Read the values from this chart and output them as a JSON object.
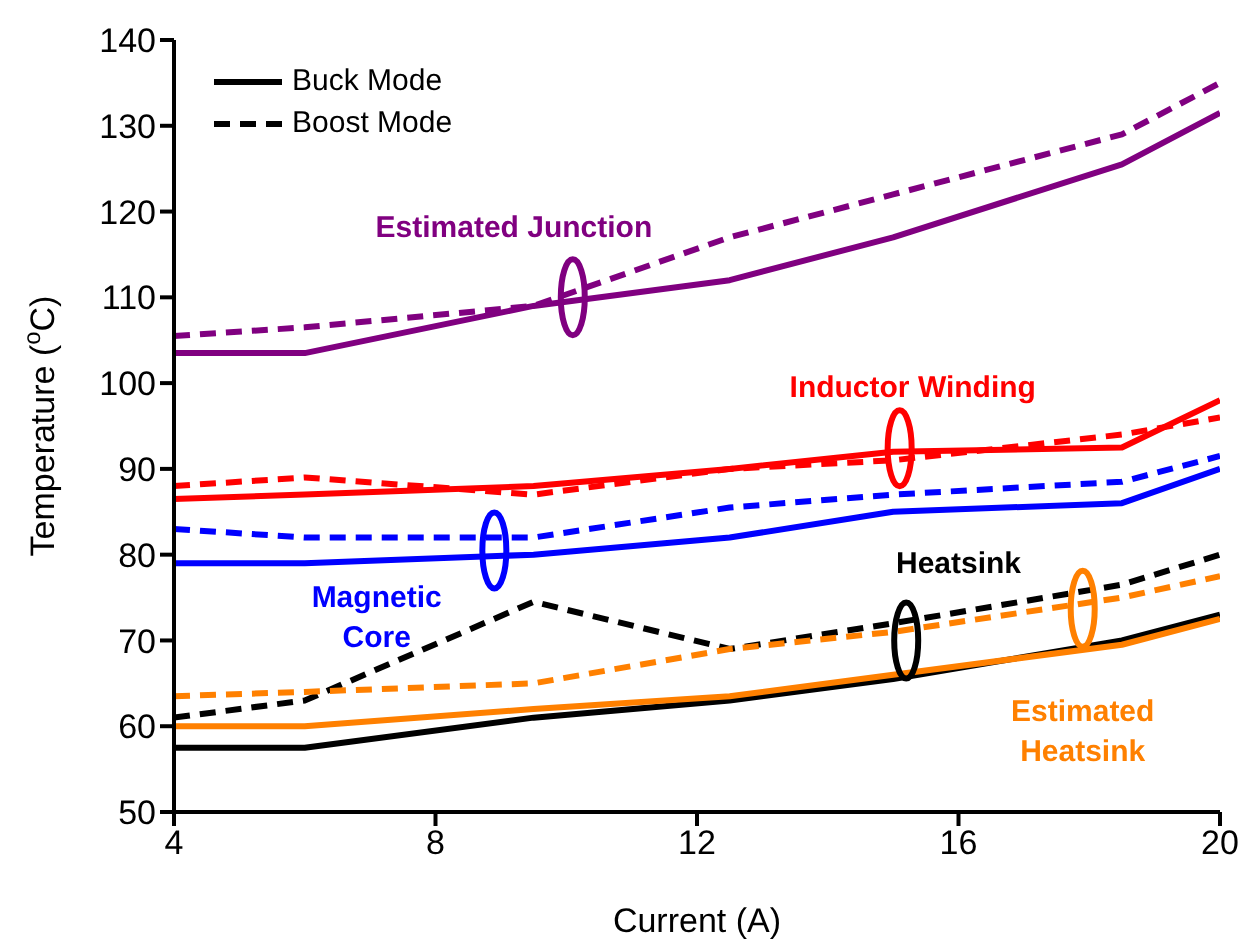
{
  "chart_data": {
    "type": "line",
    "xlabel": "Current (A)",
    "ylabel": "Temperature ($^{o}$C)",
    "x": [
      4,
      6,
      9.5,
      12.5,
      15,
      18.5,
      20
    ],
    "series": [
      {
        "color": "#800080",
        "line_style": "solid",
        "values": [
          103.5,
          103.5,
          109,
          112,
          117,
          125.5,
          131.5
        ]
      },
      {
        "color": "#800080",
        "line_style": "dashed",
        "values": [
          105.5,
          106.5,
          109,
          117,
          122,
          129,
          135
        ]
      },
      {
        "color": "#ff0000",
        "line_style": "solid",
        "values": [
          86.5,
          87,
          88,
          90,
          92,
          92.5,
          98
        ]
      },
      {
        "color": "#ff0000",
        "line_style": "dashed",
        "values": [
          88,
          89,
          87,
          90,
          91,
          94,
          96
        ]
      },
      {
        "color": "#0000ff",
        "line_style": "solid",
        "values": [
          79,
          79,
          80,
          82,
          85,
          86,
          90
        ]
      },
      {
        "color": "#0000ff",
        "line_style": "dashed",
        "values": [
          83,
          82,
          82,
          85.5,
          87,
          88.5,
          91.5
        ]
      },
      {
        "name": "Buck Mode",
        "color": "#000000",
        "line_style": "solid",
        "values": [
          57.5,
          57.5,
          61,
          63,
          65.5,
          70,
          73
        ]
      },
      {
        "name": "Boost Mode",
        "color": "#000000",
        "line_style": "dashed",
        "values": [
          61,
          63,
          74.5,
          69,
          72,
          76.5,
          80
        ]
      },
      {
        "color": "#ff8000",
        "line_style": "solid",
        "values": [
          60,
          60,
          62,
          63.5,
          66,
          69.5,
          72.5
        ]
      },
      {
        "color": "#ff8000",
        "line_style": "dashed",
        "values": [
          63.5,
          64,
          65,
          69,
          71,
          75,
          77.5
        ]
      }
    ],
    "annotations": [
      "Estimated Junction",
      "Inductor Winding",
      "Magnetic\nCore",
      "Heatsink",
      "Estimated\nHeatsink"
    ],
    "xlim": [
      4,
      20
    ],
    "xticks": [
      4,
      8,
      12,
      16,
      20
    ],
    "ylim": [
      50,
      140
    ],
    "yticks": [
      50,
      60,
      70,
      80,
      90,
      100,
      110,
      120,
      130,
      140
    ],
    "grid": false,
    "legend": "top left",
    "marker": "none"
  }
}
